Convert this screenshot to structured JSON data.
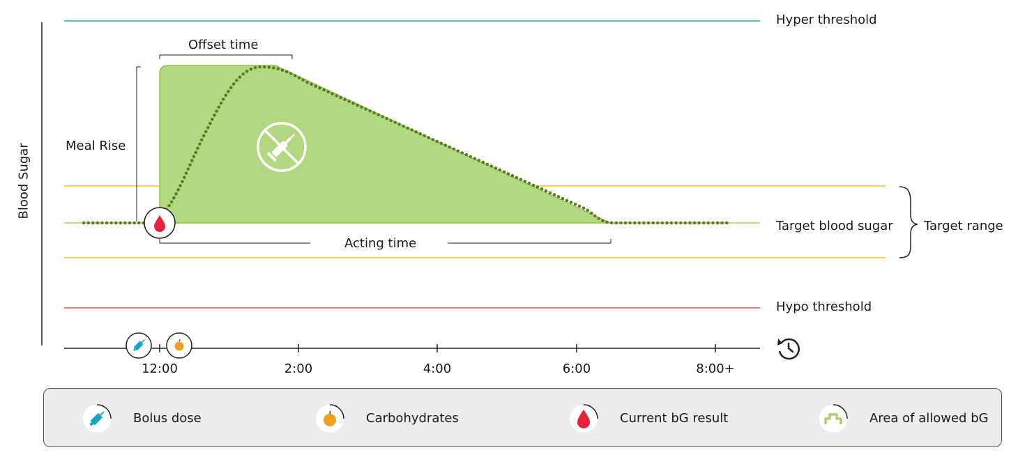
{
  "axis": {
    "y_label": "Blood Sugar"
  },
  "thresholds": {
    "hyper": "Hyper threshold",
    "target": "Target blood sugar",
    "target_range": "Target range",
    "hypo": "Hypo threshold"
  },
  "annotations": {
    "offset_time": "Offset time",
    "meal_rise": "Meal Rise",
    "acting_time": "Acting time"
  },
  "time_axis": {
    "ticks": [
      "12:00",
      "2:00",
      "4:00",
      "6:00",
      "8:00+"
    ]
  },
  "legend": [
    {
      "icon": "syringe-icon",
      "label": "Bolus dose"
    },
    {
      "icon": "apple-icon",
      "label": "Carbohydrates"
    },
    {
      "icon": "blood-drop-icon",
      "label": "Current bG result"
    },
    {
      "icon": "allowed-area-icon",
      "label": "Area of allowed bG"
    }
  ],
  "colors": {
    "hyper": "#1aa3b3",
    "target_range": "#f3c21b",
    "hypo": "#e84b4b",
    "allowed_area": "#b3d882",
    "curve": "#5a7d1f",
    "blood_drop": "#e8223a",
    "syringe": "#1aa3c4",
    "apple": "#f0a020"
  }
}
